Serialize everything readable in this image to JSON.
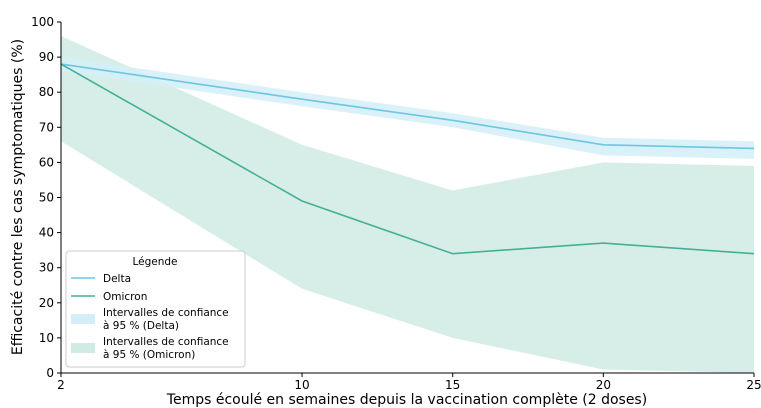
{
  "chart_data": {
    "type": "line",
    "title": "",
    "xlabel": "Temps écoulé en semaines depuis la vaccination complète (2 doses)",
    "ylabel": "Efficacité contre les cas symptomatiques (%)",
    "x": [
      2,
      10,
      15,
      20,
      25
    ],
    "xticks": [
      "2",
      "10",
      "15",
      "20",
      "25"
    ],
    "yticks": [
      "0",
      "10",
      "20",
      "30",
      "40",
      "50",
      "60",
      "70",
      "80",
      "90",
      "100"
    ],
    "xlim": [
      2,
      25
    ],
    "ylim": [
      0,
      100
    ],
    "grid": false,
    "legend": {
      "title": "Légende",
      "placement": "bottom-left"
    },
    "series": [
      {
        "name": "Delta",
        "color": "#6ec6e0",
        "values": [
          88,
          78,
          72,
          65,
          64
        ],
        "ci_name_line1": "Intervalles de confiance",
        "ci_name_line2": "à 95 % (Delta)",
        "ci_color": "#d4eef8",
        "ci_lower": [
          86,
          76,
          70,
          62,
          61
        ],
        "ci_upper": [
          90,
          80,
          74,
          67,
          66
        ]
      },
      {
        "name": "Omicron",
        "color": "#45b096",
        "values": [
          88,
          49,
          34,
          37,
          34
        ],
        "ci_name_line1": "Intervalles de confiance",
        "ci_name_line2": "à 95 % (Omicron)",
        "ci_color": "#d0ebe4",
        "ci_lower": [
          66,
          24,
          10,
          1,
          0
        ],
        "ci_upper": [
          96,
          65,
          52,
          60,
          59
        ]
      }
    ]
  }
}
